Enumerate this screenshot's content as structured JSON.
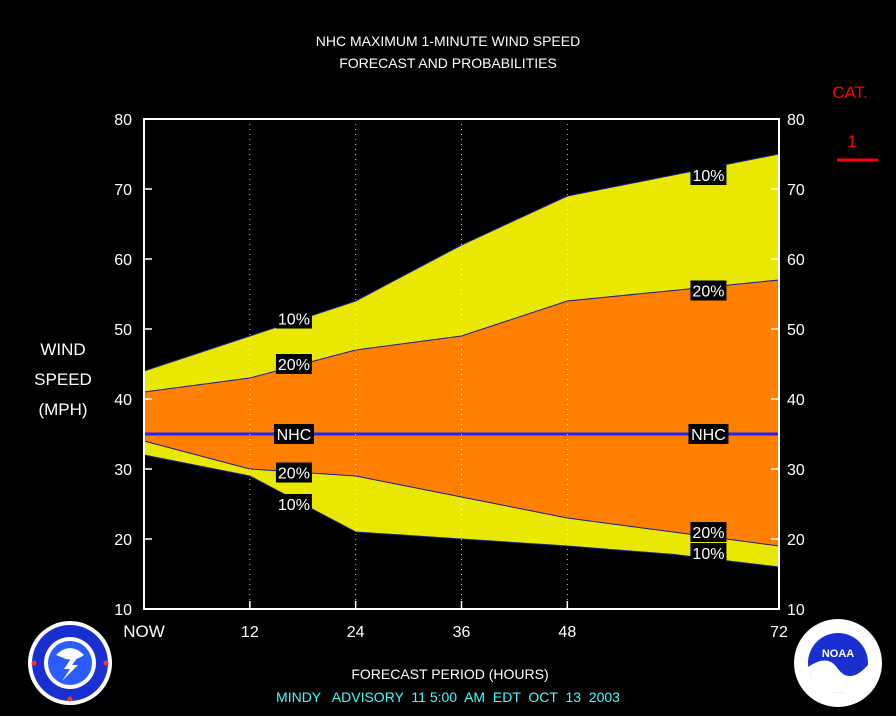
{
  "chart_data": {
    "type": "area",
    "title_line1": "NHC MAXIMUM 1-MINUTE WIND SPEED",
    "title_line2": "FORECAST AND PROBABILITIES",
    "ylabel": [
      "WIND",
      "SPEED",
      "(MPH)"
    ],
    "xlabel": "FORECAST PERIOD (HOURS)",
    "footer": "MINDY   ADVISORY  11 5:00  AM  EDT  OCT  13  2003",
    "x_ticks": [
      {
        "x": 0,
        "label": "NOW"
      },
      {
        "x": 12,
        "label": "12"
      },
      {
        "x": 24,
        "label": "24"
      },
      {
        "x": 36,
        "label": "36"
      },
      {
        "x": 48,
        "label": "48"
      },
      {
        "x": 72,
        "label": "72"
      }
    ],
    "y_ticks": [
      10,
      20,
      30,
      40,
      50,
      60,
      70,
      80
    ],
    "xlim": [
      0,
      72
    ],
    "ylim": [
      10,
      80
    ],
    "grid": "dotted vertical at 12, 24, 36, 48",
    "category": {
      "label": "CAT.",
      "value": "1",
      "color": "#ff0000"
    },
    "colors": {
      "outer_band": "#e8e800",
      "inner_band": "#ff8000",
      "nhc_line": "#2222ff",
      "axis": "#ffffff"
    },
    "x": [
      0,
      12,
      24,
      36,
      48,
      60,
      72
    ],
    "upper_10": [
      44,
      49,
      54,
      62,
      69,
      72,
      75
    ],
    "upper_20": [
      41,
      43,
      47,
      49,
      54,
      55.5,
      57
    ],
    "nhc": [
      35,
      35,
      35,
      35,
      35,
      35,
      35
    ],
    "lower_20": [
      34,
      30,
      29,
      26,
      23,
      21,
      19
    ],
    "lower_10": [
      32,
      29,
      21,
      20,
      19,
      17.8,
      16
    ],
    "labels": [
      {
        "text": "10%",
        "x": 17,
        "y": 51.5
      },
      {
        "text": "20%",
        "x": 17,
        "y": 45
      },
      {
        "text": "NHC",
        "x": 17,
        "y": 35
      },
      {
        "text": "20%",
        "x": 17,
        "y": 29.5
      },
      {
        "text": "10%",
        "x": 17,
        "y": 25
      },
      {
        "text": "10%",
        "x": 64,
        "y": 72
      },
      {
        "text": "20%",
        "x": 64,
        "y": 55.5
      },
      {
        "text": "NHC",
        "x": 64,
        "y": 35
      },
      {
        "text": "20%",
        "x": 64,
        "y": 21
      },
      {
        "text": "10%",
        "x": 64,
        "y": 18
      }
    ]
  },
  "logos": {
    "left": {
      "icon": "nws-logo",
      "text": "NATIONAL WEATHER SERVICE"
    },
    "right": {
      "icon": "noaa-logo",
      "text": "NOAA"
    }
  }
}
